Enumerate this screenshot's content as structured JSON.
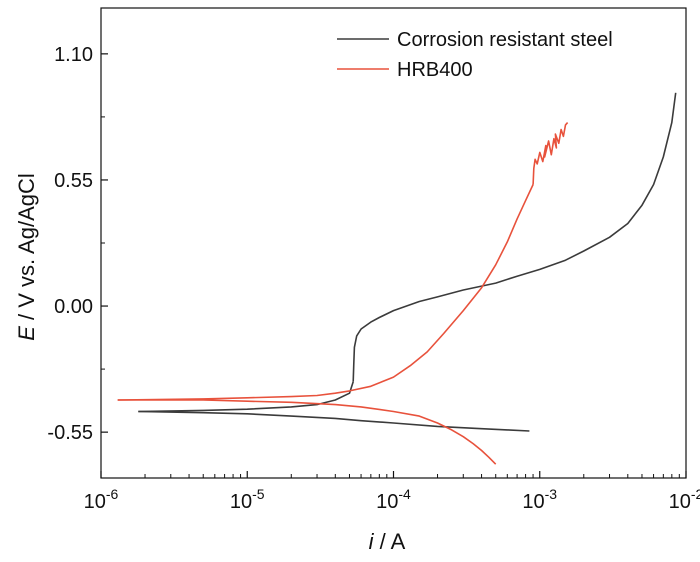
{
  "chart_data": {
    "type": "line",
    "title": "",
    "xlabel": {
      "italic": "i",
      "rest": " / A"
    },
    "ylabel": {
      "italic": "E",
      "rest": " / V vs. Ag/AgCl"
    },
    "x_scale": "log",
    "xlim": [
      1e-06,
      0.01
    ],
    "ylim": [
      -0.75,
      1.3
    ],
    "x_ticks": [
      {
        "value": 1e-06,
        "base": "10",
        "exp": "-6"
      },
      {
        "value": 1e-05,
        "base": "10",
        "exp": "-5"
      },
      {
        "value": 0.0001,
        "base": "10",
        "exp": "-4"
      },
      {
        "value": 0.001,
        "base": "10",
        "exp": "-3"
      },
      {
        "value": 0.01,
        "base": "10",
        "exp": "-2"
      }
    ],
    "y_ticks": [
      {
        "value": 1.1,
        "label": "1.10"
      },
      {
        "value": 0.55,
        "label": "0.55"
      },
      {
        "value": 0.0,
        "label": "0.00"
      },
      {
        "value": -0.55,
        "label": "-0.55"
      }
    ],
    "grid": false,
    "legend_position": "top-right",
    "series": [
      {
        "name": "Corrosion resistant steel",
        "color": "#3b3b3b",
        "branches": [
          {
            "x": [
              1.8e-06,
              5e-06,
              1e-05,
              2e-05,
              3e-05,
              4e-05,
              5e-05,
              5.3e-05
            ],
            "y": [
              -0.46,
              -0.455,
              -0.45,
              -0.44,
              -0.43,
              -0.41,
              -0.38,
              -0.33
            ]
          },
          {
            "x": [
              1.8e-06,
              5e-06,
              1e-05,
              2e-05,
              4e-05,
              6e-05,
              0.0001,
              0.0002,
              0.0004,
              0.0006,
              0.00085
            ],
            "y": [
              -0.46,
              -0.465,
              -0.47,
              -0.48,
              -0.49,
              -0.5,
              -0.51,
              -0.525,
              -0.535,
              -0.54,
              -0.545
            ]
          },
          {
            "x": [
              5.3e-05,
              5.35e-05,
              5.4e-05,
              5.6e-05,
              6e-05,
              7e-05,
              8e-05,
              0.0001,
              0.00015,
              0.0002,
              0.0003,
              0.0005,
              0.0007,
              0.001,
              0.0015,
              0.002,
              0.003,
              0.004,
              0.005,
              0.006,
              0.007,
              0.008,
              0.0085
            ],
            "y": [
              -0.33,
              -0.25,
              -0.18,
              -0.13,
              -0.1,
              -0.07,
              -0.05,
              -0.02,
              0.02,
              0.04,
              0.07,
              0.1,
              0.13,
              0.16,
              0.2,
              0.24,
              0.3,
              0.36,
              0.44,
              0.53,
              0.65,
              0.8,
              0.93
            ]
          }
        ]
      },
      {
        "name": "HRB400",
        "color": "#e8523c",
        "branches": [
          {
            "x": [
              1.3e-06,
              5e-06,
              1e-05,
              2e-05,
              3e-05,
              4e-05,
              5e-05,
              7e-05,
              0.0001,
              0.00013,
              0.00017,
              0.00022,
              0.0003,
              0.0004,
              0.0005,
              0.0006,
              0.0007,
              0.0008,
              0.0009
            ],
            "y": [
              -0.41,
              -0.405,
              -0.4,
              -0.395,
              -0.39,
              -0.38,
              -0.37,
              -0.35,
              -0.31,
              -0.26,
              -0.2,
              -0.12,
              -0.02,
              0.08,
              0.18,
              0.28,
              0.38,
              0.46,
              0.53
            ]
          },
          {
            "x": [
              1.3e-06,
              5e-06,
              1e-05,
              2e-05,
              4e-05,
              6e-05,
              0.0001,
              0.00015,
              0.0002,
              0.00025,
              0.0003,
              0.00035,
              0.0004,
              0.00045,
              0.0005
            ],
            "y": [
              -0.41,
              -0.41,
              -0.415,
              -0.42,
              -0.43,
              -0.44,
              -0.46,
              -0.48,
              -0.51,
              -0.54,
              -0.57,
              -0.6,
              -0.63,
              -0.66,
              -0.69
            ]
          },
          {
            "x": [
              0.0009,
              0.00091,
              0.00093,
              0.00096,
              0.001,
              0.00105,
              0.0011,
              0.00108,
              0.00115,
              0.0012,
              0.00125,
              0.0013,
              0.00128,
              0.00135,
              0.0014,
              0.00145,
              0.0015,
              0.00155
            ],
            "y": [
              0.53,
              0.6,
              0.64,
              0.62,
              0.67,
              0.63,
              0.7,
              0.65,
              0.72,
              0.66,
              0.73,
              0.69,
              0.75,
              0.71,
              0.77,
              0.74,
              0.79,
              0.8
            ]
          }
        ]
      }
    ]
  }
}
